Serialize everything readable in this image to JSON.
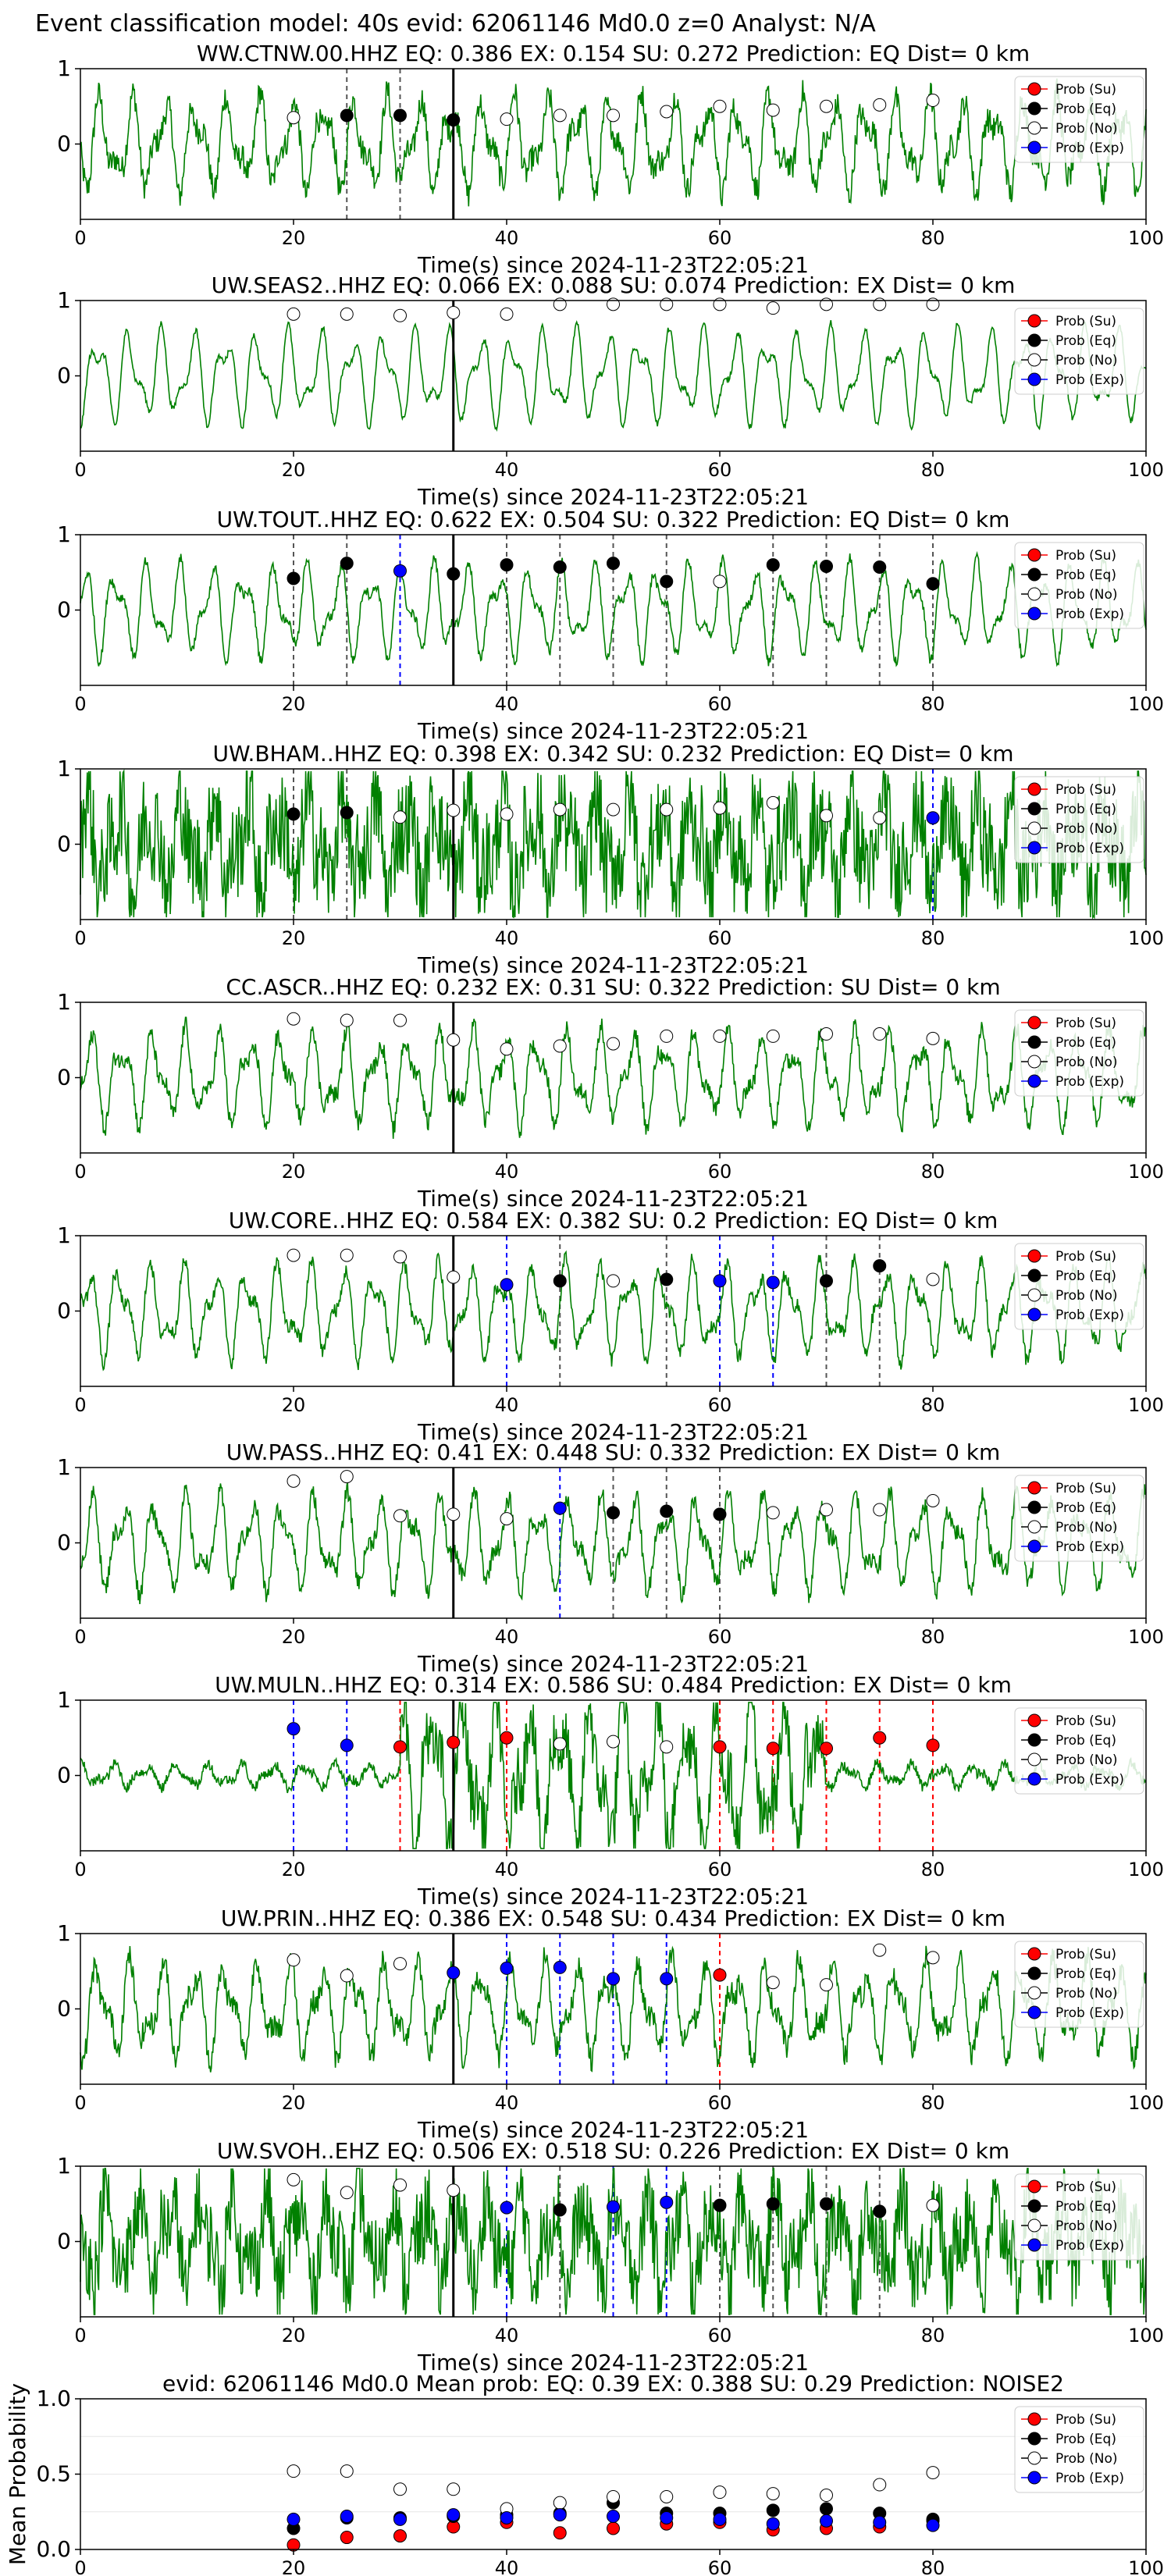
{
  "figure": {
    "suptitle": "Event classification model: 40s evid: 62061146 Md0.0 z=0 Analyst: N/A",
    "xlabel": "Time(s) since 2024-11-23T22:05:21",
    "legend": [
      "Prob (Su)",
      "Prob (Eq)",
      "Prob (No)",
      "Prob (Exp)"
    ],
    "colors": {
      "waveform": "#008000",
      "su": "#ff0000",
      "eq": "#000000",
      "no": "#ffffff",
      "exp": "#0000ff",
      "origin_line": "#000000"
    }
  },
  "chart_data": [
    {
      "type": "line",
      "station": "WW.CTNW.00.HHZ",
      "title": "WW.CTNW.00.HHZ   EQ: 0.386  EX: 0.154  SU: 0.272   Prediction: EQ    Dist= 0 km",
      "xlim": [
        0,
        100
      ],
      "ylim": [
        -1,
        1
      ],
      "xticks": [
        0,
        20,
        40,
        60,
        80,
        100
      ],
      "yticks": [
        1,
        0
      ],
      "origin_time": 35,
      "prediction": "EQ",
      "noise_level": 0.22,
      "x": [
        20,
        25,
        30,
        35,
        40,
        45,
        50,
        55,
        60,
        65,
        70,
        75,
        80
      ],
      "class": [
        "no",
        "eq",
        "eq",
        "eq",
        "no",
        "no",
        "no",
        "no",
        "no",
        "no",
        "no",
        "no",
        "no"
      ],
      "prob": [
        0.35,
        0.38,
        0.38,
        0.32,
        0.33,
        0.38,
        0.38,
        0.43,
        0.5,
        0.45,
        0.5,
        0.52,
        0.58
      ]
    },
    {
      "type": "line",
      "station": "UW.SEAS2..HHZ",
      "title": "UW.SEAS2..HHZ   EQ: 0.066  EX: 0.088  SU: 0.074   Prediction: EX    Dist= 0 km",
      "xlim": [
        0,
        100
      ],
      "ylim": [
        -1,
        1
      ],
      "xticks": [
        0,
        20,
        40,
        60,
        80,
        100
      ],
      "yticks": [
        1,
        0
      ],
      "origin_time": 35,
      "prediction": "EX",
      "noise_level": 0.05,
      "x": [
        20,
        25,
        30,
        35,
        40,
        45,
        50,
        55,
        60,
        65,
        70,
        75,
        80
      ],
      "class": [
        "no",
        "no",
        "no",
        "no",
        "no",
        "no",
        "no",
        "no",
        "no",
        "no",
        "no",
        "no",
        "no"
      ],
      "prob": [
        0.82,
        0.82,
        0.8,
        0.84,
        0.82,
        0.95,
        0.95,
        0.95,
        0.95,
        0.9,
        0.95,
        0.95,
        0.95
      ]
    },
    {
      "type": "line",
      "station": "UW.TOUT..HHZ",
      "title": "UW.TOUT..HHZ   EQ: 0.622  EX: 0.504  SU: 0.322   Prediction: EQ    Dist= 0 km",
      "xlim": [
        0,
        100
      ],
      "ylim": [
        -1,
        1
      ],
      "xticks": [
        0,
        20,
        40,
        60,
        80,
        100
      ],
      "yticks": [
        1,
        0
      ],
      "origin_time": 35,
      "prediction": "EQ",
      "noise_level": 0.08,
      "x": [
        20,
        25,
        30,
        35,
        40,
        45,
        50,
        55,
        60,
        65,
        70,
        75,
        80
      ],
      "class": [
        "eq",
        "eq",
        "exp",
        "eq",
        "eq",
        "eq",
        "eq",
        "eq",
        "no",
        "eq",
        "eq",
        "eq",
        "eq"
      ],
      "prob": [
        0.42,
        0.62,
        0.52,
        0.48,
        0.6,
        0.57,
        0.62,
        0.38,
        0.38,
        0.6,
        0.58,
        0.57,
        0.35
      ]
    },
    {
      "type": "line",
      "station": "UW.BHAM..HHZ",
      "title": "UW.BHAM..HHZ   EQ: 0.398  EX: 0.342  SU: 0.232   Prediction: EQ    Dist= 0 km",
      "xlim": [
        0,
        100
      ],
      "ylim": [
        -1,
        1
      ],
      "xticks": [
        0,
        20,
        40,
        60,
        80,
        100
      ],
      "yticks": [
        1,
        0
      ],
      "origin_time": 35,
      "prediction": "EQ",
      "noise_level": 0.85,
      "x": [
        20,
        25,
        30,
        35,
        40,
        45,
        50,
        55,
        60,
        65,
        70,
        75,
        80
      ],
      "class": [
        "eq",
        "eq",
        "no",
        "no",
        "no",
        "no",
        "no",
        "no",
        "no",
        "no",
        "no",
        "no",
        "exp"
      ],
      "prob": [
        0.4,
        0.42,
        0.36,
        0.45,
        0.4,
        0.46,
        0.46,
        0.46,
        0.48,
        0.55,
        0.38,
        0.35,
        0.35
      ]
    },
    {
      "type": "line",
      "station": "CC.ASCR..HHZ",
      "title": "CC.ASCR..HHZ   EQ: 0.232  EX: 0.31  SU: 0.322   Prediction: SU    Dist= 0 km",
      "xlim": [
        0,
        100
      ],
      "ylim": [
        -1,
        1
      ],
      "xticks": [
        0,
        20,
        40,
        60,
        80,
        100
      ],
      "yticks": [
        1,
        0
      ],
      "origin_time": 35,
      "prediction": "SU",
      "noise_level": 0.15,
      "x": [
        20,
        25,
        30,
        35,
        40,
        45,
        50,
        55,
        60,
        65,
        70,
        75,
        80
      ],
      "class": [
        "no",
        "no",
        "no",
        "no",
        "no",
        "no",
        "no",
        "no",
        "no",
        "no",
        "no",
        "no",
        "no"
      ],
      "prob": [
        0.78,
        0.76,
        0.76,
        0.5,
        0.38,
        0.42,
        0.45,
        0.55,
        0.55,
        0.55,
        0.58,
        0.58,
        0.52
      ]
    },
    {
      "type": "line",
      "station": "UW.CORE..HHZ",
      "title": "UW.CORE..HHZ   EQ: 0.584  EX: 0.382  SU: 0.2   Prediction: EQ    Dist= 0 km",
      "xlim": [
        0,
        100
      ],
      "ylim": [
        -1,
        1
      ],
      "xticks": [
        0,
        20,
        40,
        60,
        80,
        100
      ],
      "yticks": [
        1,
        0
      ],
      "origin_time": 35,
      "prediction": "EQ",
      "noise_level": 0.12,
      "x": [
        20,
        25,
        30,
        35,
        40,
        45,
        50,
        55,
        60,
        65,
        70,
        75,
        80
      ],
      "class": [
        "no",
        "no",
        "no",
        "no",
        "exp",
        "eq",
        "no",
        "eq",
        "exp",
        "exp",
        "eq",
        "eq",
        "no"
      ],
      "prob": [
        0.74,
        0.74,
        0.72,
        0.45,
        0.35,
        0.4,
        0.4,
        0.42,
        0.4,
        0.38,
        0.4,
        0.6,
        0.42
      ]
    },
    {
      "type": "line",
      "station": "UW.PASS..HHZ",
      "title": "UW.PASS..HHZ   EQ: 0.41  EX: 0.448  SU: 0.332   Prediction: EX    Dist= 0 km",
      "xlim": [
        0,
        100
      ],
      "ylim": [
        -1,
        1
      ],
      "xticks": [
        0,
        20,
        40,
        60,
        80,
        100
      ],
      "yticks": [
        1,
        0
      ],
      "origin_time": 35,
      "prediction": "EX",
      "noise_level": 0.15,
      "x": [
        20,
        25,
        30,
        35,
        40,
        45,
        50,
        55,
        60,
        65,
        70,
        75,
        80
      ],
      "class": [
        "no",
        "no",
        "no",
        "no",
        "no",
        "exp",
        "eq",
        "eq",
        "eq",
        "no",
        "no",
        "no",
        "no"
      ],
      "prob": [
        0.82,
        0.88,
        0.36,
        0.38,
        0.32,
        0.46,
        0.4,
        0.42,
        0.38,
        0.4,
        0.44,
        0.44,
        0.56
      ]
    },
    {
      "type": "line",
      "station": "UW.MULN..HHZ",
      "title": "UW.MULN..HHZ   EQ: 0.314  EX: 0.586  SU: 0.484   Prediction: EX    Dist= 0 km",
      "xlim": [
        0,
        100
      ],
      "ylim": [
        -1,
        1
      ],
      "xticks": [
        0,
        20,
        40,
        60,
        80,
        100
      ],
      "yticks": [
        1,
        0
      ],
      "origin_time": 35,
      "prediction": "EX",
      "noise_level": 0.35,
      "amplitude": "burst",
      "x": [
        20,
        25,
        30,
        35,
        40,
        45,
        50,
        55,
        60,
        65,
        70,
        75,
        80
      ],
      "class": [
        "exp",
        "exp",
        "su",
        "su",
        "su",
        "no",
        "no",
        "no",
        "su",
        "su",
        "su",
        "su",
        "su"
      ],
      "prob": [
        0.62,
        0.4,
        0.38,
        0.44,
        0.5,
        0.42,
        0.45,
        0.38,
        0.38,
        0.36,
        0.36,
        0.5,
        0.4
      ]
    },
    {
      "type": "line",
      "station": "UW.PRIN..HHZ",
      "title": "UW.PRIN..HHZ   EQ: 0.386  EX: 0.548  SU: 0.434   Prediction: EX    Dist= 0 km",
      "xlim": [
        0,
        100
      ],
      "ylim": [
        -1,
        1
      ],
      "xticks": [
        0,
        20,
        40,
        60,
        80,
        100
      ],
      "yticks": [
        1,
        0
      ],
      "origin_time": 35,
      "prediction": "EX",
      "noise_level": 0.2,
      "x": [
        20,
        25,
        30,
        35,
        40,
        45,
        50,
        55,
        60,
        65,
        70,
        75,
        80
      ],
      "class": [
        "no",
        "no",
        "no",
        "exp",
        "exp",
        "exp",
        "exp",
        "exp",
        "su",
        "no",
        "no",
        "no",
        "no"
      ],
      "prob": [
        0.65,
        0.44,
        0.6,
        0.48,
        0.54,
        0.55,
        0.4,
        0.4,
        0.45,
        0.35,
        0.32,
        0.78,
        0.68
      ]
    },
    {
      "type": "line",
      "station": "UW.SVOH..EHZ",
      "title": "UW.SVOH..EHZ   EQ: 0.506  EX: 0.518  SU: 0.226   Prediction: EX    Dist= 0 km",
      "xlim": [
        0,
        100
      ],
      "ylim": [
        -1,
        1
      ],
      "xticks": [
        0,
        20,
        40,
        60,
        80,
        100
      ],
      "yticks": [
        1,
        0
      ],
      "origin_time": 35,
      "prediction": "EX",
      "noise_level": 0.7,
      "x": [
        20,
        25,
        30,
        35,
        40,
        45,
        50,
        55,
        60,
        65,
        70,
        75,
        80
      ],
      "class": [
        "no",
        "no",
        "no",
        "no",
        "exp",
        "eq",
        "exp",
        "exp",
        "eq",
        "eq",
        "eq",
        "eq",
        "no"
      ],
      "prob": [
        0.82,
        0.65,
        0.75,
        0.68,
        0.45,
        0.42,
        0.46,
        0.52,
        0.48,
        0.5,
        0.5,
        0.4,
        0.48
      ]
    },
    {
      "type": "scatter",
      "title": "evid: 62061146  Md0.0   Mean prob:   EQ: 0.39  EX: 0.388  SU: 0.29   Prediction: NOISE2",
      "ylabel": "Mean Probability",
      "xlim": [
        0,
        100
      ],
      "ylim": [
        0,
        1
      ],
      "xticks": [
        0,
        20,
        40,
        60,
        80,
        100
      ],
      "yticks": [
        1.0,
        0.5,
        0.0
      ],
      "grid": true,
      "x": [
        20,
        25,
        30,
        35,
        40,
        45,
        50,
        55,
        60,
        65,
        70,
        75,
        80
      ],
      "series": [
        {
          "name": "Prob (Su)",
          "key": "su",
          "values": [
            0.03,
            0.08,
            0.09,
            0.15,
            0.18,
            0.11,
            0.14,
            0.17,
            0.18,
            0.13,
            0.14,
            0.15,
            0.19
          ]
        },
        {
          "name": "Prob (Eq)",
          "key": "eq",
          "values": [
            0.14,
            0.21,
            0.21,
            0.22,
            0.23,
            0.24,
            0.31,
            0.24,
            0.24,
            0.26,
            0.27,
            0.24,
            0.2
          ]
        },
        {
          "name": "Prob (No)",
          "key": "no",
          "values": [
            0.52,
            0.52,
            0.4,
            0.4,
            0.27,
            0.31,
            0.35,
            0.35,
            0.38,
            0.37,
            0.36,
            0.43,
            0.51
          ]
        },
        {
          "name": "Prob (Exp)",
          "key": "exp",
          "values": [
            0.2,
            0.22,
            0.2,
            0.23,
            0.21,
            0.23,
            0.22,
            0.21,
            0.2,
            0.17,
            0.19,
            0.18,
            0.16
          ]
        }
      ]
    }
  ]
}
